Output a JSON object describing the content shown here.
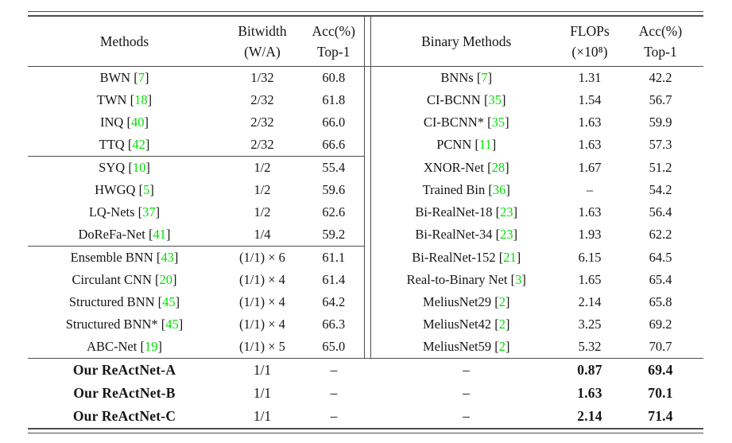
{
  "table": {
    "colors": {
      "citation": "#00e000",
      "rule": "#4d4d4d",
      "text": "#151515"
    },
    "punctuation": {
      "cite_open": "[",
      "cite_close": "]"
    },
    "header": {
      "left": {
        "methods": "Methods",
        "bitwidth_line1": "Bitwidth",
        "bitwidth_line2": "(W/A)",
        "acc_line1": "Acc(%)",
        "acc_line2": "Top-1"
      },
      "right": {
        "methods": "Binary Methods",
        "flops_line1": "FLOPs",
        "flops_line2": "(×10⁸)",
        "acc_line1": "Acc(%)",
        "acc_line2": "Top-1"
      }
    },
    "rows": [
      {
        "left": {
          "method": "BWN",
          "cite": "7",
          "bitwidth": "1/32",
          "acc": "60.8"
        },
        "right": {
          "method": "BNNs",
          "cite": "7",
          "flops": "1.31",
          "acc": "42.2"
        }
      },
      {
        "left": {
          "method": "TWN",
          "cite": "18",
          "bitwidth": "2/32",
          "acc": "61.8"
        },
        "right": {
          "method": "CI-BCNN",
          "cite": "35",
          "flops": "1.54",
          "acc": "56.7"
        }
      },
      {
        "left": {
          "method": "INQ",
          "cite": "40",
          "bitwidth": "2/32",
          "acc": "66.0"
        },
        "right": {
          "method": "CI-BCNN*",
          "cite": "35",
          "flops": "1.63",
          "acc": "59.9"
        }
      },
      {
        "left": {
          "method": "TTQ",
          "cite": "42",
          "bitwidth": "2/32",
          "acc": "66.6"
        },
        "right": {
          "method": "PCNN",
          "cite": "11",
          "flops": "1.63",
          "acc": "57.3"
        },
        "left_group_end": true
      },
      {
        "left": {
          "method": "SYQ",
          "cite": "10",
          "bitwidth": "1/2",
          "acc": "55.4"
        },
        "right": {
          "method": "XNOR-Net",
          "cite": "28",
          "flops": "1.67",
          "acc": "51.2"
        }
      },
      {
        "left": {
          "method": "HWGQ",
          "cite": "5",
          "bitwidth": "1/2",
          "acc": "59.6"
        },
        "right": {
          "method": "Trained Bin",
          "cite": "36",
          "flops": "–",
          "acc": "54.2"
        }
      },
      {
        "left": {
          "method": "LQ-Nets",
          "cite": "37",
          "bitwidth": "1/2",
          "acc": "62.6"
        },
        "right": {
          "method": "Bi-RealNet-18",
          "cite": "23",
          "flops": "1.63",
          "acc": "56.4"
        }
      },
      {
        "left": {
          "method": "DoReFa-Net",
          "cite": "41",
          "bitwidth": "1/4",
          "acc": "59.2"
        },
        "right": {
          "method": "Bi-RealNet-34",
          "cite": "23",
          "flops": "1.93",
          "acc": "62.2"
        },
        "left_group_end": true
      },
      {
        "left": {
          "method": "Ensemble BNN",
          "cite": "43",
          "bitwidth": "(1/1) × 6",
          "acc": "61.1"
        },
        "right": {
          "method": "Bi-RealNet-152",
          "cite": "21",
          "flops": "6.15",
          "acc": "64.5"
        }
      },
      {
        "left": {
          "method": "Circulant CNN",
          "cite": "20",
          "bitwidth": "(1/1) × 4",
          "acc": "61.4"
        },
        "right": {
          "method": "Real-to-Binary Net",
          "cite": "3",
          "flops": "1.65",
          "acc": "65.4"
        }
      },
      {
        "left": {
          "method": "Structured BNN",
          "cite": "45",
          "bitwidth": "(1/1) × 4",
          "acc": "64.2"
        },
        "right": {
          "method": "MeliusNet29",
          "cite": "2",
          "flops": "2.14",
          "acc": "65.8"
        }
      },
      {
        "left": {
          "method": "Structured BNN*",
          "cite": "45",
          "bitwidth": "(1/1) × 4",
          "acc": "66.3"
        },
        "right": {
          "method": "MeliusNet42",
          "cite": "2",
          "flops": "3.25",
          "acc": "69.2"
        }
      },
      {
        "left": {
          "method": "ABC-Net",
          "cite": "19",
          "bitwidth": "(1/1) × 5",
          "acc": "65.0"
        },
        "right": {
          "method": "MeliusNet59",
          "cite": "2",
          "flops": "5.32",
          "acc": "70.7"
        }
      }
    ],
    "our_rows": [
      {
        "left": {
          "method": "Our ReActNet-A",
          "cite": null,
          "bitwidth": "1/1",
          "acc": "–"
        },
        "right": {
          "method": "–",
          "cite": null,
          "flops": "0.87",
          "acc": "69.4"
        }
      },
      {
        "left": {
          "method": "Our ReActNet-B",
          "cite": null,
          "bitwidth": "1/1",
          "acc": "–"
        },
        "right": {
          "method": "–",
          "cite": null,
          "flops": "1.63",
          "acc": "70.1"
        }
      },
      {
        "left": {
          "method": "Our ReActNet-C",
          "cite": null,
          "bitwidth": "1/1",
          "acc": "–"
        },
        "right": {
          "method": "–",
          "cite": null,
          "flops": "2.14",
          "acc": "71.4"
        }
      }
    ]
  }
}
